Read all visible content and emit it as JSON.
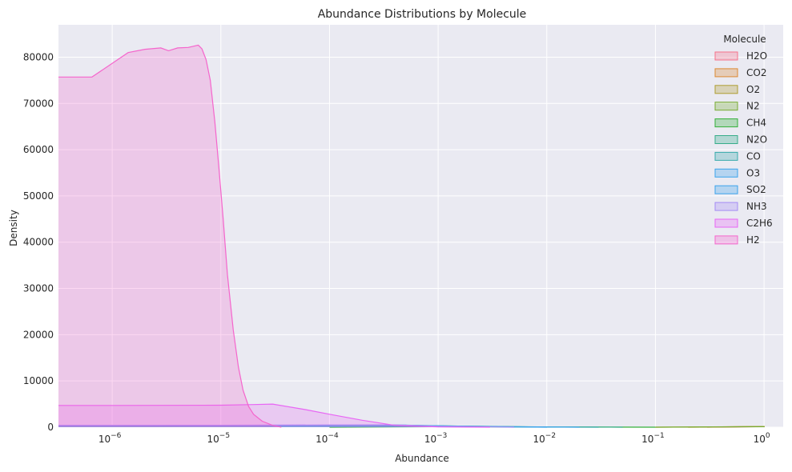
{
  "chart_data": {
    "type": "area",
    "title": "Abundance Distributions by Molecule",
    "xlabel": "Abundance",
    "ylabel": "Density",
    "xscale": "log",
    "xlim": [
      3.2e-07,
      1.5
    ],
    "ylim": [
      0,
      87000
    ],
    "x_ticks": [
      1e-06,
      1e-05,
      0.0001,
      0.001,
      0.01,
      0.1,
      1
    ],
    "x_tick_labels": [
      {
        "base": "10",
        "exp": "−6"
      },
      {
        "base": "10",
        "exp": "−5"
      },
      {
        "base": "10",
        "exp": "−4"
      },
      {
        "base": "10",
        "exp": "−3"
      },
      {
        "base": "10",
        "exp": "−2"
      },
      {
        "base": "10",
        "exp": "−1"
      },
      {
        "base": "10",
        "exp": "0"
      }
    ],
    "y_ticks": [
      0,
      10000,
      20000,
      30000,
      40000,
      50000,
      60000,
      70000,
      80000
    ],
    "y_tick_labels": [
      "0",
      "10000",
      "20000",
      "30000",
      "40000",
      "50000",
      "60000",
      "70000",
      "80000"
    ],
    "grid": true,
    "legend": {
      "title": "Molecule",
      "position": "top-right"
    },
    "series": [
      {
        "name": "H2O",
        "color": "#f77189",
        "points": [
          [
            0.3,
            0
          ],
          [
            0.6,
            60
          ],
          [
            1.0,
            120
          ],
          [
            1.0,
            0
          ]
        ]
      },
      {
        "name": "CO2",
        "color": "#dc8932",
        "points": [
          [
            0.2,
            0
          ],
          [
            0.5,
            80
          ],
          [
            1.0,
            160
          ],
          [
            1.0,
            0
          ]
        ]
      },
      {
        "name": "O2",
        "color": "#ae9d31",
        "points": [
          [
            0.1,
            0
          ],
          [
            0.5,
            90
          ],
          [
            1.0,
            150
          ],
          [
            1.0,
            0
          ]
        ]
      },
      {
        "name": "N2",
        "color": "#77ab31",
        "points": [
          [
            0.1,
            0
          ],
          [
            0.6,
            80
          ],
          [
            1.0,
            100
          ],
          [
            1.0,
            0
          ]
        ]
      },
      {
        "name": "CH4",
        "color": "#33b039",
        "points": [
          [
            0.0001,
            0
          ],
          [
            0.001,
            100
          ],
          [
            0.01,
            50
          ],
          [
            0.1,
            0
          ]
        ]
      },
      {
        "name": "N2O",
        "color": "#36ad8a",
        "points": [
          [
            3.2e-07,
            200
          ],
          [
            1e-05,
            220
          ],
          [
            0.0001,
            260
          ],
          [
            0.001,
            300
          ],
          [
            0.01,
            60
          ],
          [
            0.05,
            0
          ]
        ]
      },
      {
        "name": "CO",
        "color": "#38aaac",
        "points": [
          [
            3.2e-07,
            250
          ],
          [
            1e-05,
            280
          ],
          [
            0.0001,
            350
          ],
          [
            0.0005,
            420
          ],
          [
            0.002,
            200
          ],
          [
            0.01,
            30
          ],
          [
            0.03,
            0
          ]
        ]
      },
      {
        "name": "O3",
        "color": "#3ba3ec",
        "points": [
          [
            3.2e-07,
            300
          ],
          [
            1e-05,
            320
          ],
          [
            0.0001,
            380
          ],
          [
            0.0005,
            450
          ],
          [
            0.001,
            300
          ],
          [
            0.005,
            80
          ],
          [
            0.02,
            0
          ]
        ]
      },
      {
        "name": "SO2",
        "color": "#3ba3ec",
        "points": [
          [
            3.2e-07,
            350
          ],
          [
            1e-05,
            350
          ],
          [
            0.0001,
            400
          ],
          [
            0.0005,
            400
          ],
          [
            0.002,
            150
          ],
          [
            0.01,
            0
          ]
        ]
      },
      {
        "name": "NH3",
        "color": "#a48cf4",
        "points": [
          [
            3.2e-07,
            400
          ],
          [
            1e-05,
            420
          ],
          [
            0.0001,
            480
          ],
          [
            0.0004,
            500
          ],
          [
            0.001,
            200
          ],
          [
            0.005,
            0
          ]
        ]
      },
      {
        "name": "C2H6",
        "color": "#e866f4",
        "points": [
          [
            3.2e-07,
            4700
          ],
          [
            1e-06,
            4700
          ],
          [
            1e-05,
            4750
          ],
          [
            2e-05,
            4900
          ],
          [
            3e-05,
            5000
          ],
          [
            6e-05,
            3800
          ],
          [
            0.0001,
            2800
          ],
          [
            0.0002,
            1500
          ],
          [
            0.0004,
            400
          ],
          [
            0.001,
            50
          ],
          [
            0.003,
            0
          ]
        ]
      },
      {
        "name": "H2",
        "color": "#f565cc",
        "points": [
          [
            3.2e-07,
            75700
          ],
          [
            6.5e-07,
            75700
          ],
          [
            1.4e-06,
            81000
          ],
          [
            2e-06,
            81700
          ],
          [
            2.8e-06,
            82000
          ],
          [
            3.3e-06,
            81400
          ],
          [
            4e-06,
            82000
          ],
          [
            5e-06,
            82100
          ],
          [
            6.2e-06,
            82600
          ],
          [
            6.7e-06,
            81800
          ],
          [
            7.3e-06,
            79500
          ],
          [
            8e-06,
            75000
          ],
          [
            8.8e-06,
            66000
          ],
          [
            9.6e-06,
            56000
          ],
          [
            1.05e-05,
            45000
          ],
          [
            1.15e-05,
            33000
          ],
          [
            1.3e-05,
            21000
          ],
          [
            1.45e-05,
            13000
          ],
          [
            1.6e-05,
            8000
          ],
          [
            1.8e-05,
            4500
          ],
          [
            2e-05,
            2800
          ],
          [
            2.4e-05,
            1300
          ],
          [
            3e-05,
            400
          ],
          [
            3.6e-05,
            0
          ]
        ]
      }
    ]
  }
}
